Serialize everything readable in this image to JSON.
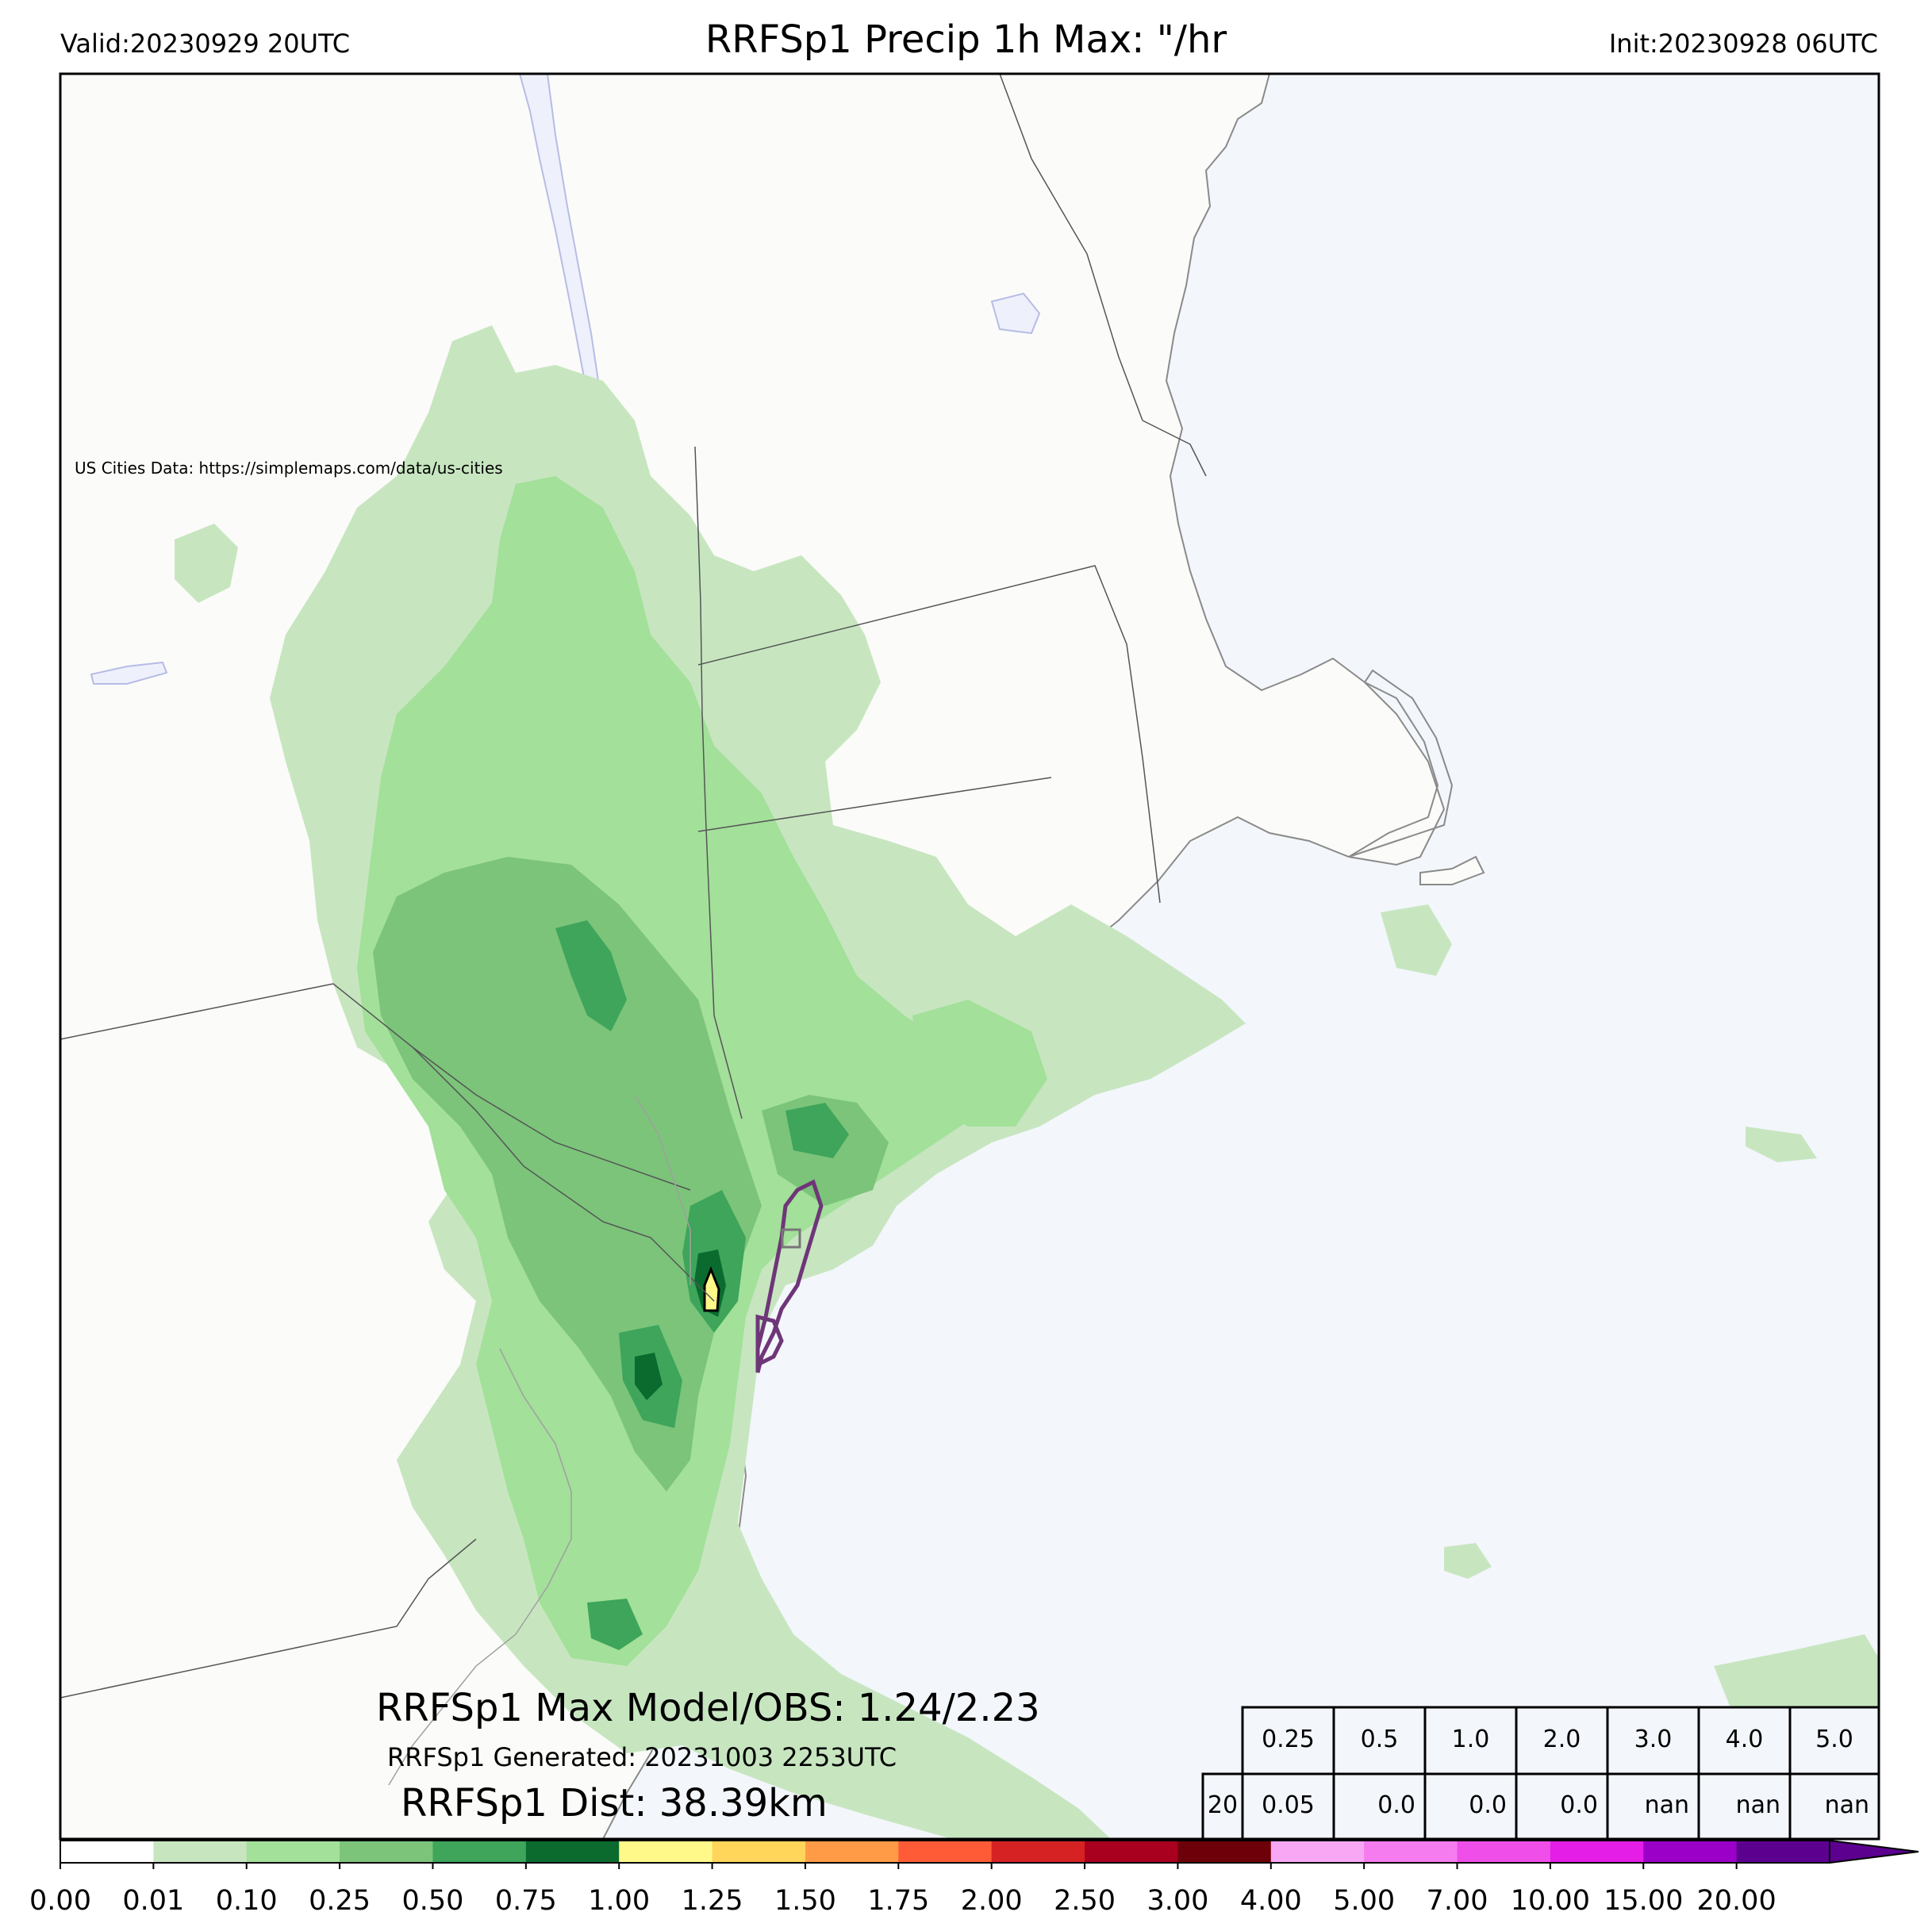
{
  "header": {
    "valid": "Valid:20230929 20UTC",
    "title": "RRFSp1 Precip 1h Max: \"/hr",
    "init": "Init:20230928 06UTC"
  },
  "map": {
    "credit": "US Cities Data: https://simplemaps.com/data/us-cities",
    "colors": {
      "land": "#fbfbf9",
      "water": "#f3f6fb",
      "inland_water": "#eef0fb",
      "border": "#555555",
      "coast": "#8a8a8a",
      "obs_contour": "#6e3678"
    }
  },
  "annotations": {
    "max_line": "RRFSp1 Max Model/OBS: 1.24/2.23",
    "generated_line": "RRFSp1 Generated: 20231003 2253UTC",
    "dist_line": "RRFSp1 Dist: 38.39km"
  },
  "stats_table": {
    "headers": [
      "0.25",
      "0.5",
      "1.0",
      "2.0",
      "3.0",
      "4.0",
      "5.0"
    ],
    "row_label": "20",
    "values": [
      "0.05",
      "0.0",
      "0.0",
      "0.0",
      "nan",
      "nan",
      "nan"
    ]
  },
  "colorbar": {
    "ticks": [
      "0.00",
      "0.01",
      "0.10",
      "0.25",
      "0.50",
      "0.75",
      "1.00",
      "1.25",
      "1.50",
      "1.75",
      "2.00",
      "2.50",
      "3.00",
      "4.00",
      "5.00",
      "7.00",
      "10.00",
      "15.00",
      "20.00"
    ],
    "colors": [
      "#ffffff",
      "#c7e6c0",
      "#a3e09a",
      "#7bc47a",
      "#3ea55a",
      "#0b6b2f",
      "#fff98a",
      "#ffd55a",
      "#ff9b47",
      "#ff5b36",
      "#d72223",
      "#a9001f",
      "#6d0008",
      "#f8a7f5",
      "#f47cef",
      "#f04ee8",
      "#e41ee6",
      "#9b00c9",
      "#5c0090"
    ]
  }
}
